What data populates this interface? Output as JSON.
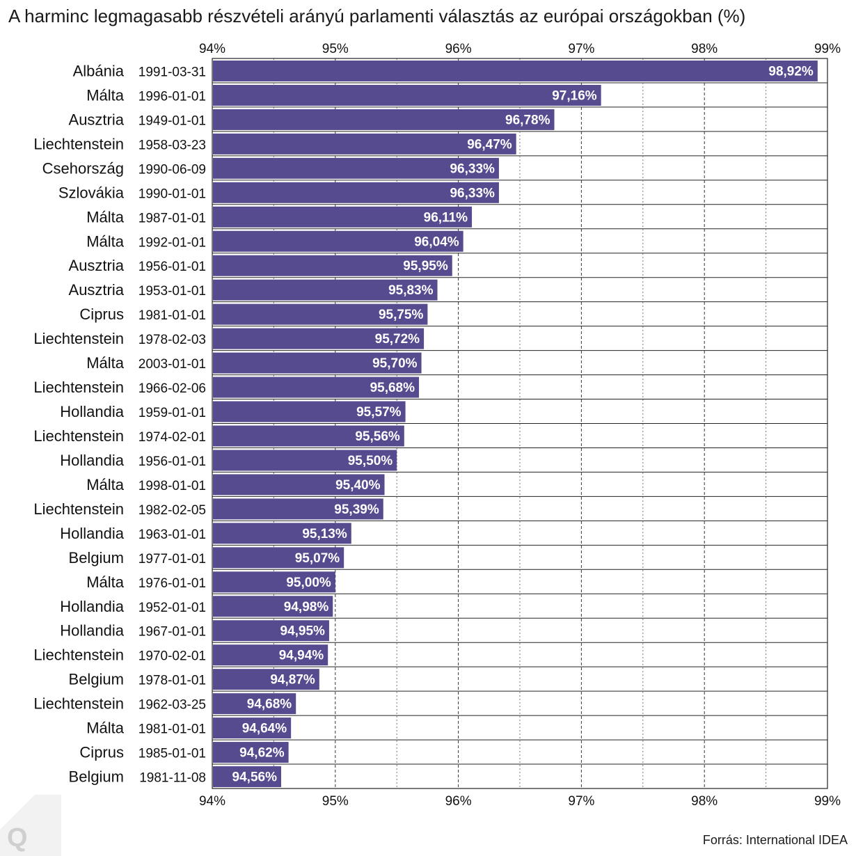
{
  "chart_data": {
    "type": "bar",
    "orientation": "horizontal",
    "title": "A harminc legmagasabb részvételi arányú parlamenti választás az európai országokban (%)",
    "xlim": [
      94,
      99
    ],
    "xticks": [
      "94%",
      "95%",
      "96%",
      "97%",
      "98%",
      "99%"
    ],
    "grid": true,
    "bar_color": "#574b8f",
    "categories": [
      {
        "country": "Albánia",
        "date": "1991-03-31"
      },
      {
        "country": "Málta",
        "date": "1996-01-01"
      },
      {
        "country": "Ausztria",
        "date": "1949-01-01"
      },
      {
        "country": "Liechtenstein",
        "date": "1958-03-23"
      },
      {
        "country": "Csehország",
        "date": "1990-06-09"
      },
      {
        "country": "Szlovákia",
        "date": "1990-01-01"
      },
      {
        "country": "Málta",
        "date": "1987-01-01"
      },
      {
        "country": "Málta",
        "date": "1992-01-01"
      },
      {
        "country": "Ausztria",
        "date": "1956-01-01"
      },
      {
        "country": "Ausztria",
        "date": "1953-01-01"
      },
      {
        "country": "Ciprus",
        "date": "1981-01-01"
      },
      {
        "country": "Liechtenstein",
        "date": "1978-02-03"
      },
      {
        "country": "Málta",
        "date": "2003-01-01"
      },
      {
        "country": "Liechtenstein",
        "date": "1966-02-06"
      },
      {
        "country": "Hollandia",
        "date": "1959-01-01"
      },
      {
        "country": "Liechtenstein",
        "date": "1974-02-01"
      },
      {
        "country": "Hollandia",
        "date": "1956-01-01"
      },
      {
        "country": "Málta",
        "date": "1998-01-01"
      },
      {
        "country": "Liechtenstein",
        "date": "1982-02-05"
      },
      {
        "country": "Hollandia",
        "date": "1963-01-01"
      },
      {
        "country": "Belgium",
        "date": "1977-01-01"
      },
      {
        "country": "Málta",
        "date": "1976-01-01"
      },
      {
        "country": "Hollandia",
        "date": "1952-01-01"
      },
      {
        "country": "Hollandia",
        "date": "1967-01-01"
      },
      {
        "country": "Liechtenstein",
        "date": "1970-02-01"
      },
      {
        "country": "Belgium",
        "date": "1978-01-01"
      },
      {
        "country": "Liechtenstein",
        "date": "1962-03-25"
      },
      {
        "country": "Málta",
        "date": "1981-01-01"
      },
      {
        "country": "Ciprus",
        "date": "1985-01-01"
      },
      {
        "country": "Belgium",
        "date": "1981-11-08"
      }
    ],
    "values": [
      98.92,
      97.16,
      96.78,
      96.47,
      96.33,
      96.33,
      96.11,
      96.04,
      95.95,
      95.83,
      95.75,
      95.72,
      95.7,
      95.68,
      95.57,
      95.56,
      95.5,
      95.4,
      95.39,
      95.13,
      95.07,
      95.0,
      94.98,
      94.95,
      94.94,
      94.87,
      94.68,
      94.64,
      94.62,
      94.56
    ],
    "value_labels": [
      "98,92%",
      "97,16%",
      "96,78%",
      "96,47%",
      "96,33%",
      "96,33%",
      "96,11%",
      "96,04%",
      "95,95%",
      "95,83%",
      "95,75%",
      "95,72%",
      "95,70%",
      "95,68%",
      "95,57%",
      "95,56%",
      "95,50%",
      "95,40%",
      "95,39%",
      "95,13%",
      "95,07%",
      "95,00%",
      "94,98%",
      "94,95%",
      "94,94%",
      "94,87%",
      "94,68%",
      "94,64%",
      "94,62%",
      "94,56%"
    ]
  },
  "source": "Forrás: International IDEA",
  "logo": {
    "text": "Q",
    "color": "#cfcfcf"
  }
}
